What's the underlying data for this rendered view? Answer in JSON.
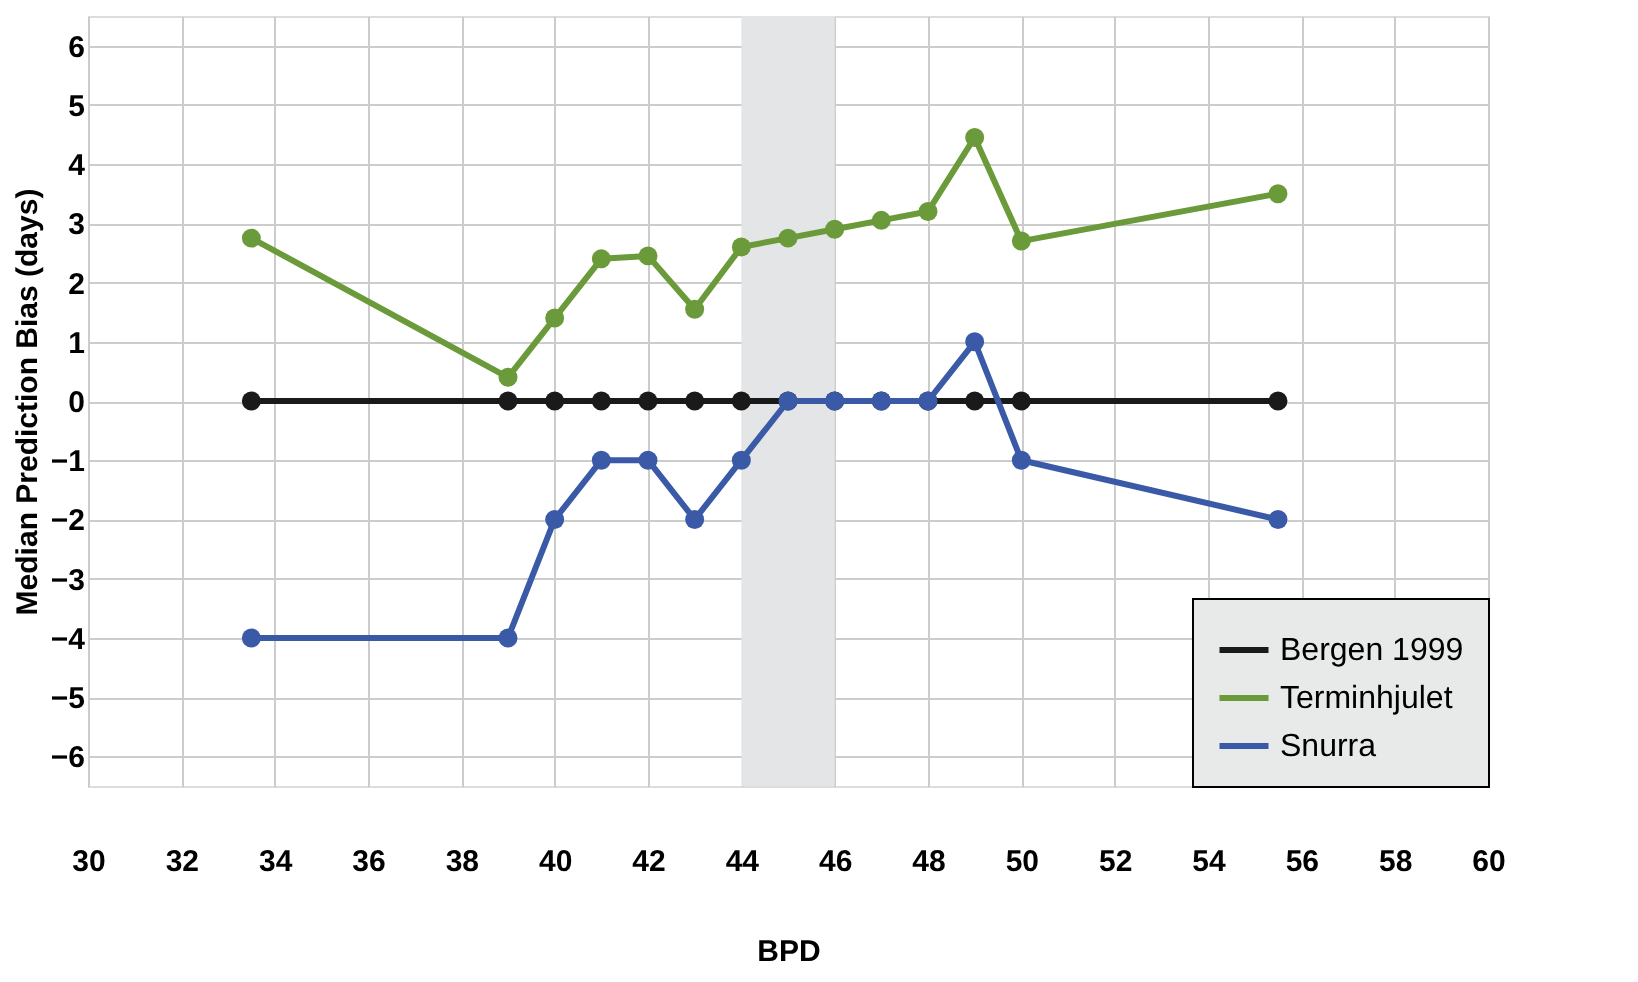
{
  "chart_data": {
    "type": "line",
    "xlabel": "BPD",
    "ylabel": "Median Prediction Bias (days)",
    "xlim": [
      30,
      60
    ],
    "xticks": [
      30,
      32,
      34,
      36,
      38,
      40,
      42,
      44,
      46,
      48,
      50,
      52,
      54,
      56,
      58,
      60
    ],
    "ylim": [
      -6.5,
      6.5
    ],
    "yticks": [
      {
        "value": -6,
        "label": "−6"
      },
      {
        "value": -5,
        "label": "−5"
      },
      {
        "value": -4,
        "label": "−4"
      },
      {
        "value": -3,
        "label": "−3"
      },
      {
        "value": -2,
        "label": "−2"
      },
      {
        "value": -1,
        "label": "−1"
      },
      0,
      1,
      2,
      3,
      4,
      5,
      6
    ],
    "x": [
      33.5,
      39,
      40,
      41,
      42,
      43,
      44,
      45,
      46,
      47,
      48,
      49,
      50,
      55.5
    ],
    "series": [
      {
        "name": "Bergen 1999",
        "color": "#1a1a1a",
        "values": [
          0,
          0,
          0,
          0,
          0,
          0,
          0,
          0,
          0,
          0,
          0,
          0,
          0,
          0
        ]
      },
      {
        "name": "Terminhjulet",
        "color": "#6a9a3a",
        "values": [
          2.75,
          0.4,
          1.4,
          2.4,
          2.45,
          1.55,
          2.6,
          2.75,
          2.9,
          3.05,
          3.2,
          4.45,
          2.7,
          3.5
        ]
      },
      {
        "name": "Snurra",
        "color": "#3a5aa8",
        "values": [
          -4,
          -4,
          -2,
          -1,
          -1,
          -2,
          -1,
          0,
          0,
          0,
          0,
          1,
          -1,
          -2
        ]
      }
    ],
    "bands": [
      {
        "axis": "x",
        "from": 44,
        "to": 46,
        "color": "#e4e5e7"
      }
    ],
    "grid": true,
    "legend": "bottom right",
    "marker": "circle",
    "line_style": "solid"
  }
}
